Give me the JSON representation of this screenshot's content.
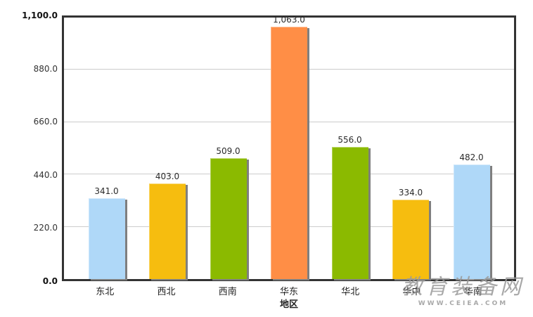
{
  "chart_data": {
    "type": "bar",
    "title": "",
    "xlabel": "地区",
    "ylabel": "",
    "categories": [
      "东北",
      "西北",
      "西南",
      "华东",
      "华北",
      "华中",
      "华南"
    ],
    "values": [
      341.0,
      403.0,
      509.0,
      1063.0,
      556.0,
      334.0,
      482.0
    ],
    "value_labels": [
      "341.0",
      "403.0",
      "509.0",
      "1,063.0",
      "556.0",
      "334.0",
      "482.0"
    ],
    "bar_colors": [
      "#AFD8F8",
      "#F6BD0F",
      "#8BBA00",
      "#FF8E46",
      "#8BBA00",
      "#F6BD0F",
      "#AFD8F8"
    ],
    "ylim": [
      0,
      1100
    ],
    "yticks": [
      {
        "value": 0,
        "label": "0.0",
        "bold": true
      },
      {
        "value": 220,
        "label": "220.0",
        "bold": false
      },
      {
        "value": 440,
        "label": "440.0",
        "bold": false
      },
      {
        "value": 660,
        "label": "660.0",
        "bold": false
      },
      {
        "value": 880,
        "label": "880.0",
        "bold": false
      },
      {
        "value": 1100,
        "label": "1,100.0",
        "bold": true
      }
    ],
    "grid": "horizontal",
    "legend": "none"
  },
  "watermark": {
    "line1": "教育装备网",
    "line2": "WWW.CEIEA.COM",
    "color": "#9a9a9a"
  },
  "colors": {
    "axis_border": "#333333",
    "gridline": "#cccccc",
    "bar_shadow": "#7f7f7f",
    "label_text": "#2b2b2b",
    "background": "#ffffff"
  }
}
